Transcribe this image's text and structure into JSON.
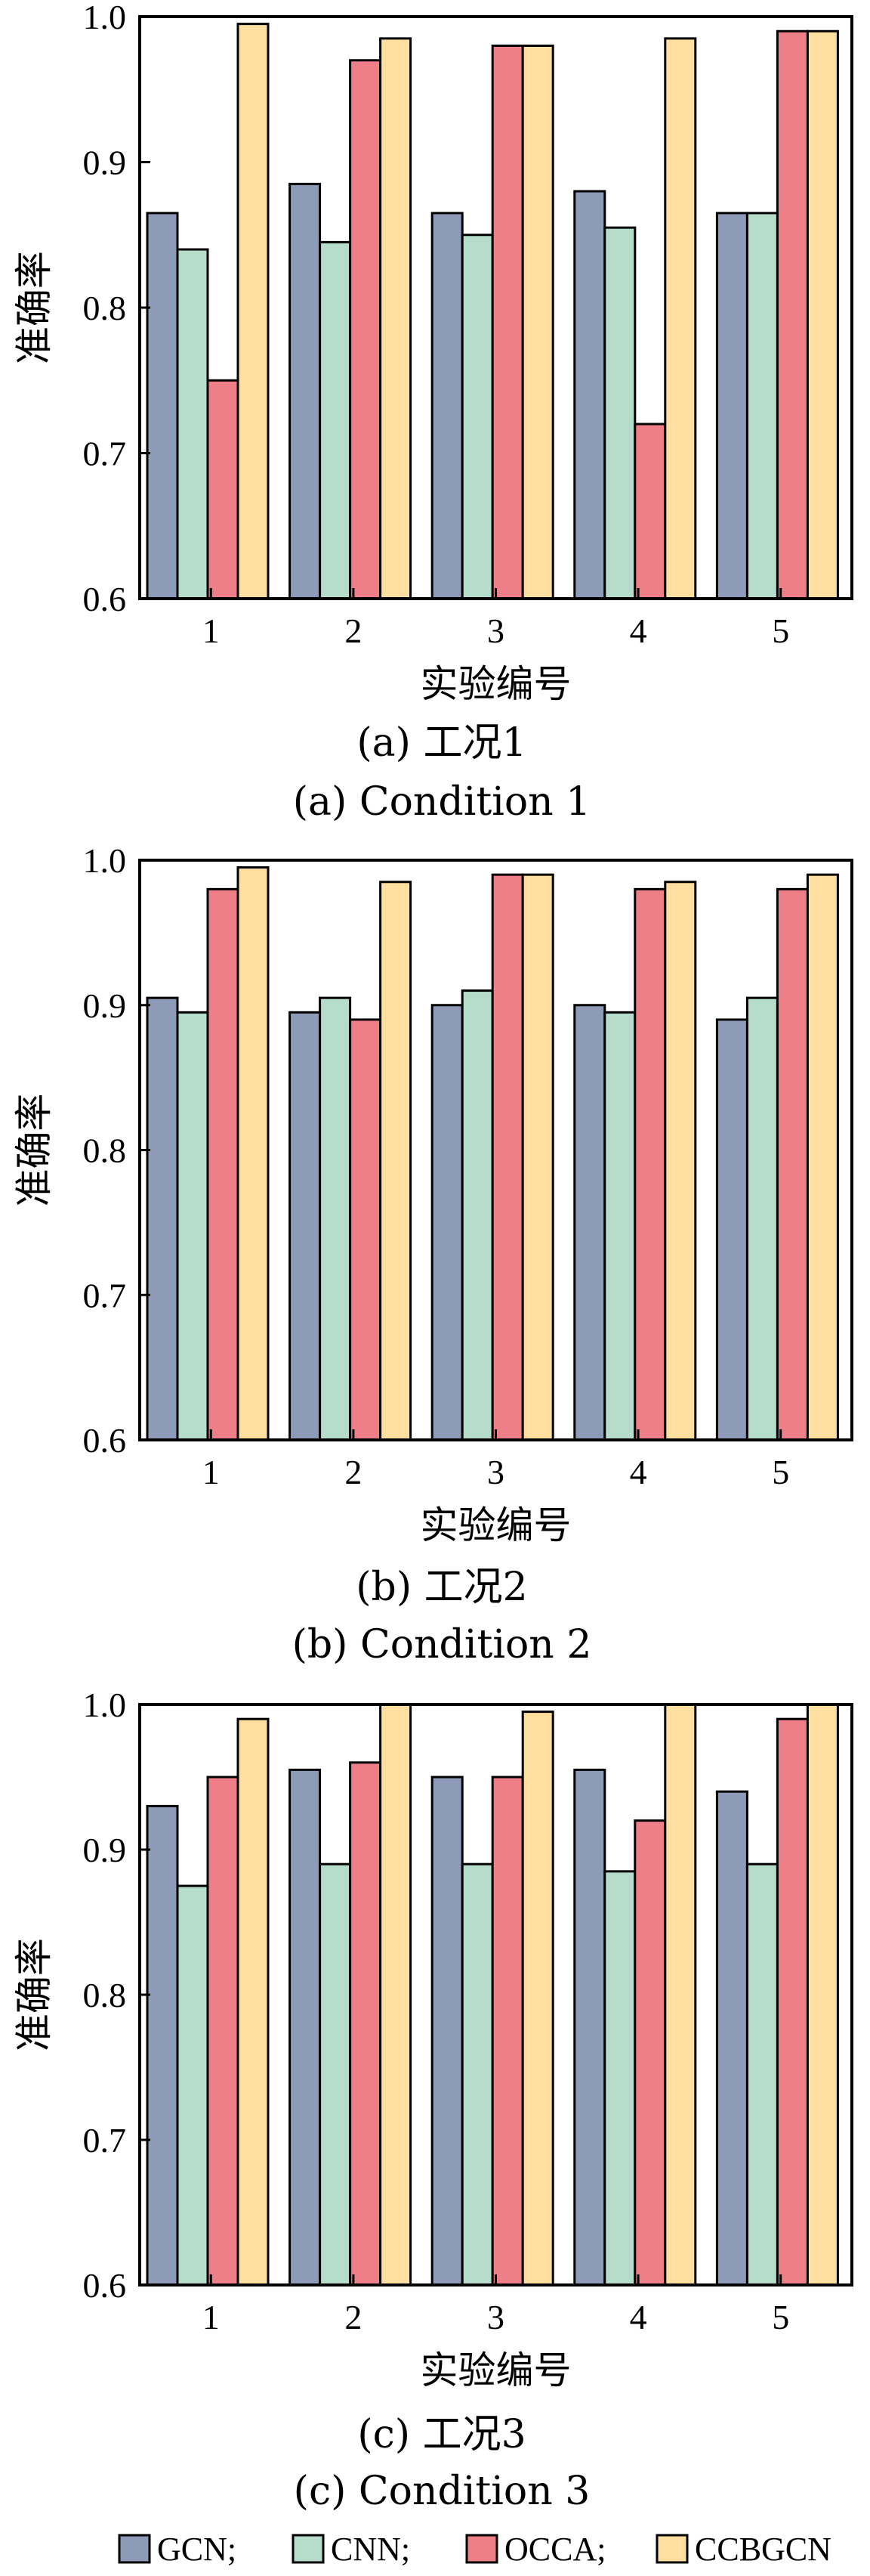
{
  "colors": {
    "GCN": "#8E9BB8",
    "CNN": "#B6DDCB",
    "OCCA": "#EE7F89",
    "CCBGCN": "#FFDFA0"
  },
  "legend": {
    "items": [
      {
        "key": "GCN",
        "label": "GCN;"
      },
      {
        "key": "CNN",
        "label": "CNN;"
      },
      {
        "key": "OCCA",
        "label": "OCCA;"
      },
      {
        "key": "CCBGCN",
        "label": "CCBGCN"
      }
    ]
  },
  "chart_data": [
    {
      "type": "bar",
      "caption_cn": "(a)  工况1",
      "caption_en": "(a)  Condition 1",
      "xlabel": "实验编号",
      "ylabel": "准确率",
      "ylim": [
        0.6,
        1.0
      ],
      "yticks": [
        "0.6",
        "0.7",
        "0.8",
        "0.9",
        "1.0"
      ],
      "categories": [
        "1",
        "2",
        "3",
        "4",
        "5"
      ],
      "series": [
        {
          "name": "GCN",
          "values": [
            0.865,
            0.885,
            0.865,
            0.88,
            0.865
          ]
        },
        {
          "name": "CNN",
          "values": [
            0.84,
            0.845,
            0.85,
            0.855,
            0.865
          ]
        },
        {
          "name": "OCCA",
          "values": [
            0.75,
            0.97,
            0.98,
            0.72,
            0.99
          ]
        },
        {
          "name": "CCBGCN",
          "values": [
            0.995,
            0.985,
            0.98,
            0.985,
            0.99
          ]
        }
      ]
    },
    {
      "type": "bar",
      "caption_cn": "(b)  工况2",
      "caption_en": "(b)  Condition 2",
      "xlabel": "实验编号",
      "ylabel": "准确率",
      "ylim": [
        0.6,
        1.0
      ],
      "yticks": [
        "0.6",
        "0.7",
        "0.8",
        "0.9",
        "1.0"
      ],
      "categories": [
        "1",
        "2",
        "3",
        "4",
        "5"
      ],
      "series": [
        {
          "name": "GCN",
          "values": [
            0.905,
            0.895,
            0.9,
            0.9,
            0.89
          ]
        },
        {
          "name": "CNN",
          "values": [
            0.895,
            0.905,
            0.91,
            0.895,
            0.905
          ]
        },
        {
          "name": "OCCA",
          "values": [
            0.98,
            0.89,
            0.99,
            0.98,
            0.98
          ]
        },
        {
          "name": "CCBGCN",
          "values": [
            0.995,
            0.985,
            0.99,
            0.985,
            0.99
          ]
        }
      ]
    },
    {
      "type": "bar",
      "caption_cn": "(c)  工况3",
      "caption_en": "(c)  Condition 3",
      "xlabel": "实验编号",
      "ylabel": "准确率",
      "ylim": [
        0.6,
        1.0
      ],
      "yticks": [
        "0.6",
        "0.7",
        "0.8",
        "0.9",
        "1.0"
      ],
      "categories": [
        "1",
        "2",
        "3",
        "4",
        "5"
      ],
      "series": [
        {
          "name": "GCN",
          "values": [
            0.93,
            0.955,
            0.95,
            0.955,
            0.94
          ]
        },
        {
          "name": "CNN",
          "values": [
            0.875,
            0.89,
            0.89,
            0.885,
            0.89
          ]
        },
        {
          "name": "OCCA",
          "values": [
            0.95,
            0.96,
            0.95,
            0.92,
            0.99
          ]
        },
        {
          "name": "CCBGCN",
          "values": [
            0.99,
            1.0,
            0.995,
            1.0,
            1.0
          ]
        }
      ]
    }
  ]
}
